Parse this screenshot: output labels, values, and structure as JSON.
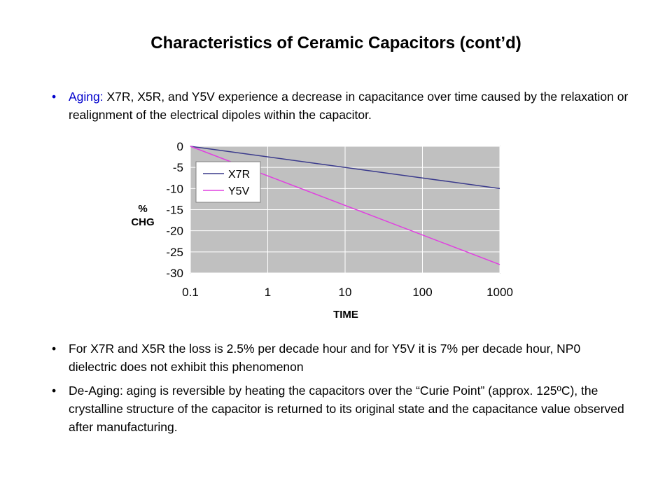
{
  "slide": {
    "title": "Characteristics of Ceramic Capacitors (cont’d)"
  },
  "bullets": [
    {
      "keyword": "Aging:",
      "text": " X7R, X5R, and Y5V experience a decrease in capacitance over time caused by the relaxation or realignment  of the electrical dipoles within the capacitor."
    },
    {
      "text": "For X7R and X5R the loss is 2.5% per decade hour and for Y5V it is 7% per decade hour, NP0 dielectric does not exhibit this phenomenon"
    },
    {
      "text": "De-Aging: aging is reversible by heating the capacitors over the “Curie Point” (approx. 125ºC), the crystalline structure of the capacitor is returned to its original state and the capacitance value observed after manufacturing."
    }
  ],
  "bullet_glyph": "•",
  "chart_data": {
    "type": "line",
    "title": "",
    "xlabel": "TIME",
    "ylabel_line1": "%",
    "ylabel_line2": "CHG",
    "x_scale": "log",
    "x_ticks": [
      "0.1",
      "1",
      "10",
      "100",
      "1000"
    ],
    "x_tick_values": [
      0.1,
      1,
      10,
      100,
      1000
    ],
    "y_ticks": [
      "0",
      "-5",
      "-10",
      "-15",
      "-20",
      "-25",
      "-30"
    ],
    "y_tick_values": [
      0,
      -5,
      -10,
      -15,
      -20,
      -25,
      -30
    ],
    "xlim": [
      0.1,
      1000
    ],
    "ylim": [
      -30,
      0
    ],
    "grid": true,
    "legend_position": "top-left",
    "plot_background": "#c0c0c0",
    "series": [
      {
        "name": "X7R",
        "color": "#3a3a8c",
        "x": [
          0.1,
          1000
        ],
        "y": [
          0,
          -10
        ]
      },
      {
        "name": "Y5V",
        "color": "#e040e0",
        "x": [
          0.1,
          1000
        ],
        "y": [
          0,
          -28
        ]
      }
    ]
  }
}
